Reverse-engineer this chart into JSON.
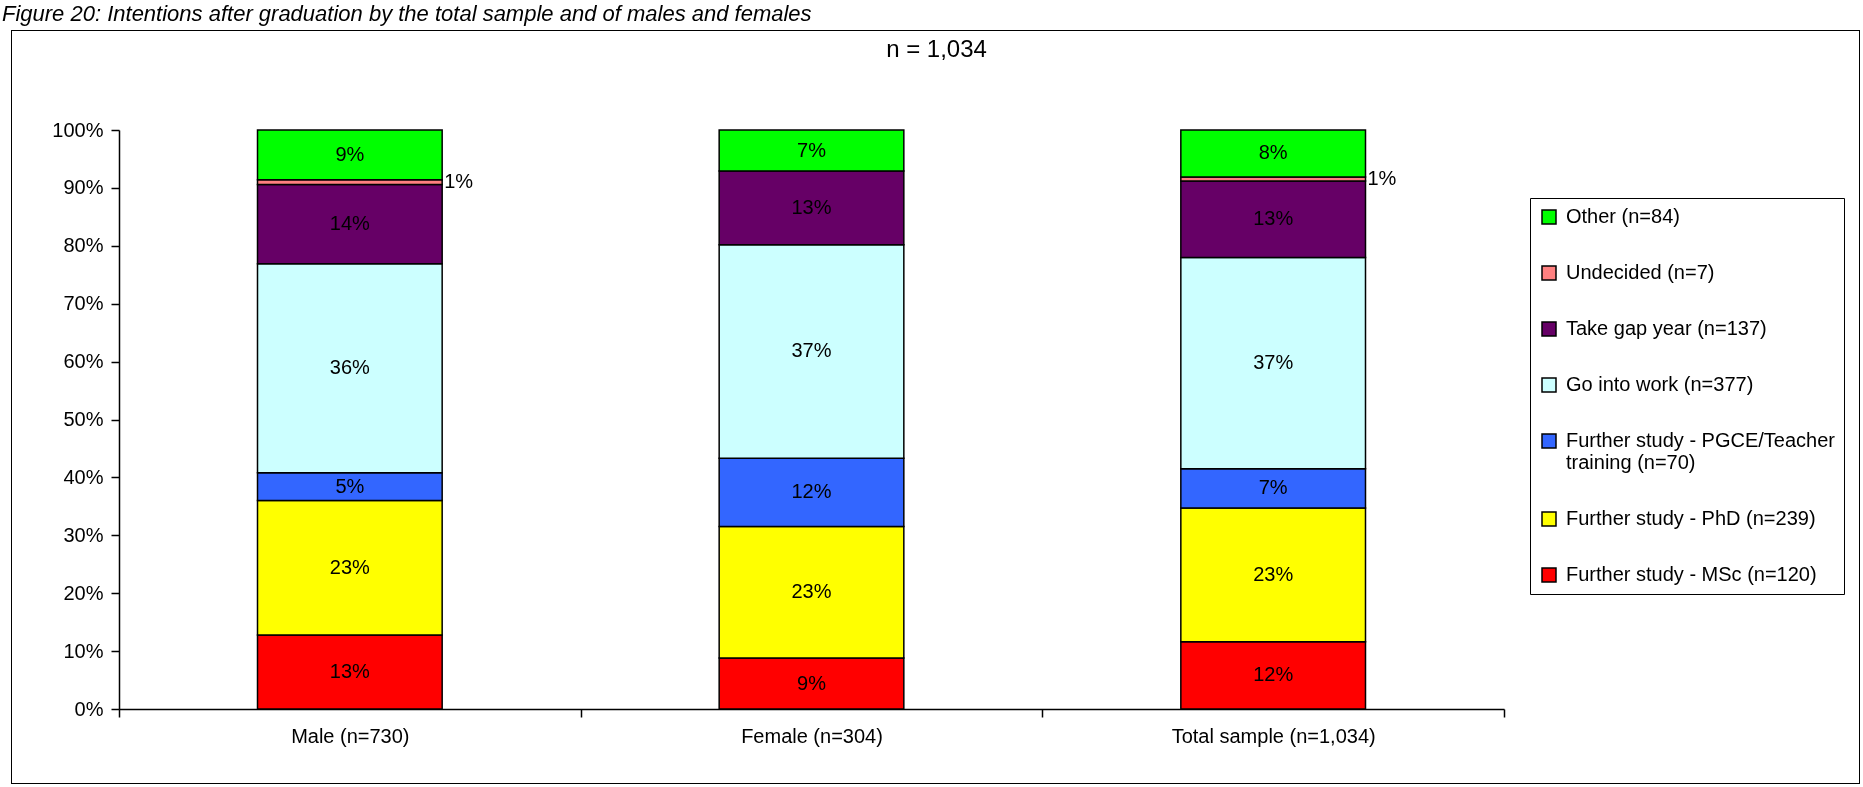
{
  "chart_data": {
    "type": "bar",
    "title": "Figure 20: Intentions after graduation by the total sample and of males and females",
    "subtitle": "n = 1,034",
    "categories": [
      "Male (n=730)",
      "Female (n=304)",
      "Total sample (n=1,034)"
    ],
    "stacked": true,
    "ylim": [
      0,
      100
    ],
    "yticks": [
      {
        "value": 0,
        "label": "0%"
      },
      {
        "value": 10,
        "label": "10%"
      },
      {
        "value": 20,
        "label": "20%"
      },
      {
        "value": 30,
        "label": "30%"
      },
      {
        "value": 40,
        "label": "40%"
      },
      {
        "value": 50,
        "label": "50%"
      },
      {
        "value": 60,
        "label": "60%"
      },
      {
        "value": 70,
        "label": "70%"
      },
      {
        "value": 80,
        "label": "80%"
      },
      {
        "value": 90,
        "label": "90%"
      },
      {
        "value": 100,
        "label": "100%"
      }
    ],
    "legend": "right",
    "series": [
      {
        "name": "Further study - MSc (n=120)",
        "color": "#ff0000",
        "values": [
          12.8,
          8.8,
          11.6
        ],
        "value_labels": [
          "13%",
          "9%",
          "12%"
        ]
      },
      {
        "name": "Further study - PhD (n=239)",
        "color": "#ffff00",
        "values": [
          23.2,
          22.7,
          23.1
        ],
        "value_labels": [
          "23%",
          "23%",
          "23%"
        ]
      },
      {
        "name": "Further study - PGCE/Teacher training (n=70)",
        "color": "#3366ff",
        "values": [
          4.8,
          11.8,
          6.8
        ],
        "value_labels": [
          "5%",
          "12%",
          "7%"
        ]
      },
      {
        "name": "Go into work (n=377)",
        "color": "#ccffff",
        "values": [
          36.1,
          36.9,
          36.5
        ],
        "value_labels": [
          "36%",
          "37%",
          "37%"
        ]
      },
      {
        "name": "Take gap year (n=137)",
        "color": "#660066",
        "values": [
          13.7,
          12.7,
          13.2
        ],
        "value_labels": [
          "14%",
          "13%",
          "13%"
        ]
      },
      {
        "name": "Undecided (n=7)",
        "color": "#ff8080",
        "values": [
          0.8,
          null,
          0.7
        ],
        "value_labels": [
          "1%",
          null,
          "1%"
        ]
      },
      {
        "name": "Other (n=84)",
        "color": "#00ff00",
        "values": [
          8.6,
          7.1,
          8.1
        ],
        "value_labels": [
          "9%",
          "7%",
          "8%"
        ]
      }
    ]
  }
}
